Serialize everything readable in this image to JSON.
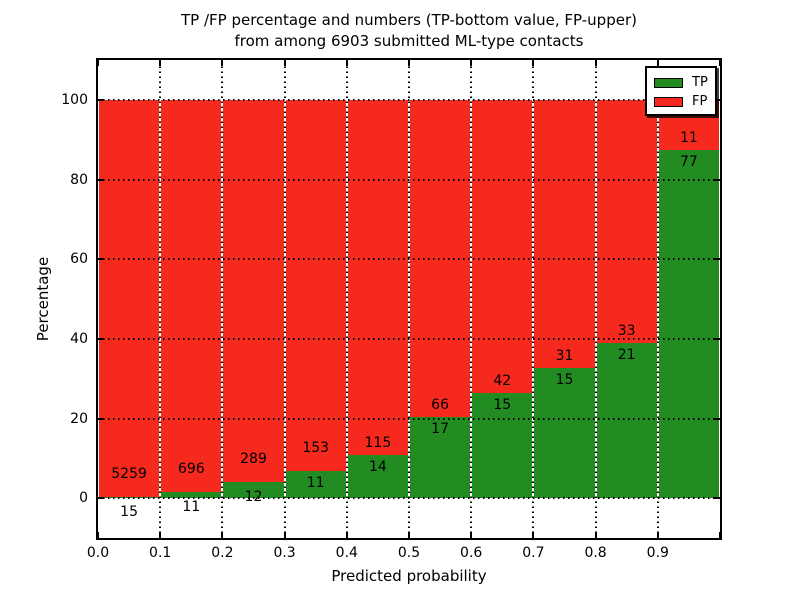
{
  "title": {
    "line1": "TP /FP percentage and numbers (TP-bottom value, FP-upper)",
    "line2": "from among 6903 submitted ML-type contacts"
  },
  "axes": {
    "xlabel": "Predicted probability",
    "ylabel": "Percentage",
    "x_tick_labels": [
      "0.0",
      "0.1",
      "0.2",
      "0.3",
      "0.4",
      "0.5",
      "0.6",
      "0.7",
      "0.8",
      "0.9"
    ],
    "y_tick_labels": [
      "0",
      "20",
      "40",
      "60",
      "80",
      "100"
    ],
    "y_tick_values": [
      0,
      20,
      40,
      60,
      80,
      100
    ],
    "xlim": [
      0.0,
      1.0
    ],
    "ylim": [
      -10,
      110
    ]
  },
  "legend": {
    "position": "upper right",
    "items": [
      {
        "label": "TP",
        "color": "#228b22"
      },
      {
        "label": "FP",
        "color": "#f5291d"
      }
    ]
  },
  "colors": {
    "tp_green": "#228b22",
    "fp_red": "#f5291d",
    "grid": "#000000",
    "background": "#ffffff"
  },
  "chart_data": {
    "type": "bar",
    "stacked": true,
    "normalized": "percent_of_bin_total",
    "title": "TP /FP percentage and numbers (TP-bottom value, FP-upper) from among 6903 submitted ML-type contacts",
    "xlabel": "Predicted probability",
    "ylabel": "Percentage",
    "xlim": [
      0.0,
      1.0
    ],
    "ylim": [
      -10,
      110
    ],
    "grid": true,
    "legend_position": "upper right",
    "total_contacts": 6903,
    "bin_width": 0.1,
    "categories": [
      "0.0-0.1",
      "0.1-0.2",
      "0.2-0.3",
      "0.3-0.4",
      "0.4-0.5",
      "0.5-0.6",
      "0.6-0.7",
      "0.7-0.8",
      "0.8-0.9",
      "0.9-1.0"
    ],
    "series": [
      {
        "name": "TP",
        "color": "#228b22",
        "values": [
          15,
          11,
          12,
          11,
          14,
          17,
          15,
          15,
          21,
          77
        ]
      },
      {
        "name": "FP",
        "color": "#f5291d",
        "values": [
          5259,
          696,
          289,
          153,
          115,
          66,
          42,
          31,
          33,
          11
        ]
      }
    ],
    "tp_percent_of_bin": [
      0.28,
      1.56,
      3.99,
      6.71,
      10.85,
      20.48,
      26.32,
      32.61,
      38.89,
      87.5
    ]
  }
}
